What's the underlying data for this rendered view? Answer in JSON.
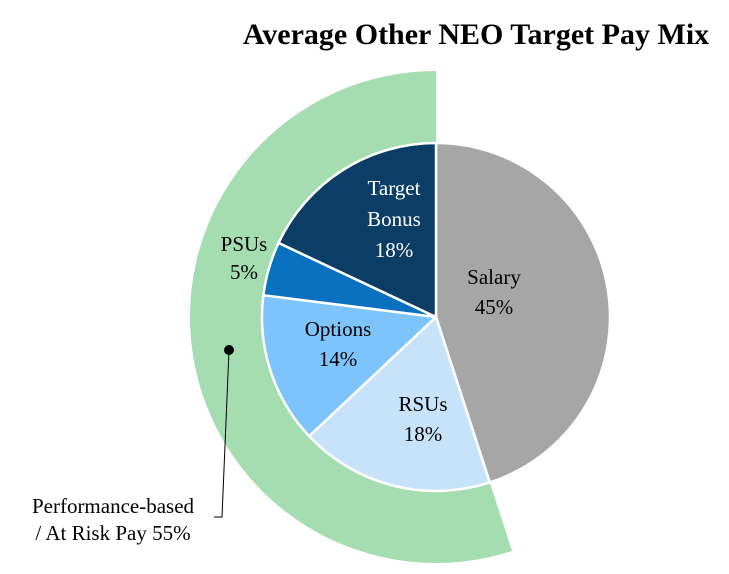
{
  "chart_data": {
    "type": "pie",
    "title": "Average  Other NEO Target  Pay Mix",
    "slices": [
      {
        "label": "Salary",
        "value": 45,
        "value_label": "45%",
        "color": "#a6a6a6"
      },
      {
        "label": "RSUs",
        "value": 18,
        "value_label": "18%",
        "color": "#c6e3fb"
      },
      {
        "label": "Options",
        "value": 14,
        "value_label": "14%",
        "color": "#7cc4fb"
      },
      {
        "label": "PSUs",
        "value": 5,
        "value_label": "5%",
        "color": "#0a70c0"
      },
      {
        "label": "Target Bonus",
        "label_lines": [
          "Target",
          "Bonus"
        ],
        "value": 18,
        "value_label": "18%",
        "color": "#0b3e66"
      }
    ],
    "outer_ring": {
      "label_lines": [
        "Performance-based",
        "/ At Risk Pay 55%"
      ],
      "value": 55,
      "color": "#a4ddb0"
    }
  }
}
